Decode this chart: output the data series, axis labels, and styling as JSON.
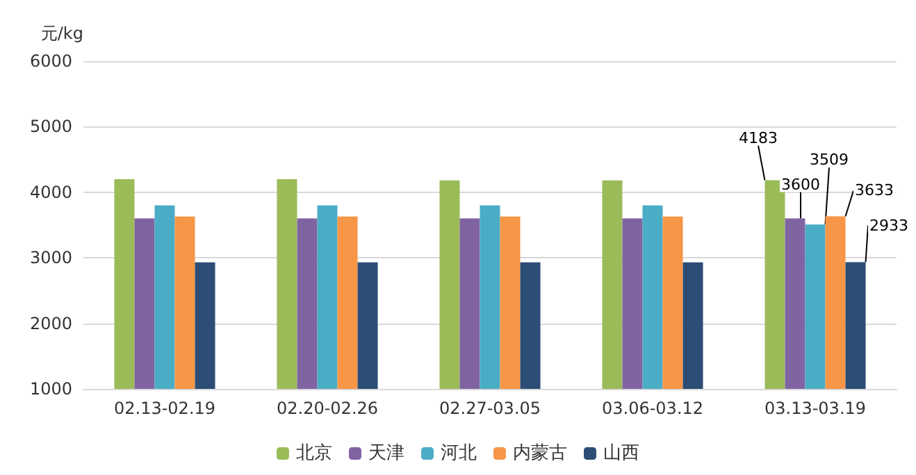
{
  "chart_data": {
    "type": "bar",
    "ylabel": "元/kg",
    "categories": [
      "02.13-02.19",
      "02.20-02.26",
      "02.27-03.05",
      "03.06-03.12",
      "03.13-03.19"
    ],
    "series": [
      {
        "name": "北京",
        "color": "#9bbb59",
        "values": [
          4200,
          4200,
          4180,
          4180,
          4183
        ],
        "value_labels": [
          null,
          null,
          null,
          null,
          "4183"
        ]
      },
      {
        "name": "天津",
        "color": "#8064a2",
        "values": [
          3600,
          3600,
          3600,
          3600,
          3600
        ],
        "value_labels": [
          null,
          null,
          null,
          null,
          "3600"
        ]
      },
      {
        "name": "河北",
        "color": "#4bacc6",
        "values": [
          3800,
          3800,
          3800,
          3800,
          3509
        ],
        "value_labels": [
          null,
          null,
          null,
          null,
          "3509"
        ]
      },
      {
        "name": "内蒙古",
        "color": "#f79646",
        "values": [
          3630,
          3630,
          3630,
          3630,
          3633
        ],
        "value_labels": [
          null,
          null,
          null,
          null,
          "3633"
        ]
      },
      {
        "name": "山西",
        "color": "#2c4d75",
        "values": [
          2930,
          2930,
          2930,
          2930,
          2933
        ],
        "value_labels": [
          null,
          null,
          null,
          null,
          "2933"
        ]
      }
    ],
    "ylim": [
      1000,
      6000
    ],
    "yticks": [
      1000,
      2000,
      3000,
      4000,
      5000,
      6000
    ],
    "grid": "y",
    "legend": "bottom"
  }
}
